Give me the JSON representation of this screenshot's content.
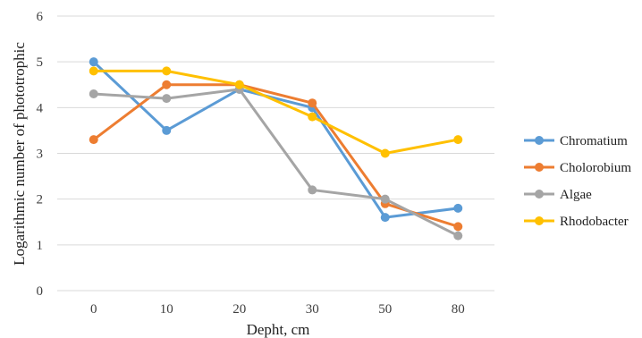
{
  "chart_data": {
    "type": "line",
    "title": "",
    "xlabel": "Depht, cm",
    "ylabel": "Logarithmic number of phototrophic",
    "categories": [
      "0",
      "10",
      "20",
      "30",
      "50",
      "80"
    ],
    "ylim": [
      0,
      6
    ],
    "yticks": [
      0,
      1,
      2,
      3,
      4,
      5,
      6
    ],
    "grid": "horizontal",
    "legend_position": "right",
    "series": [
      {
        "name": "Chromatium",
        "color": "#5b9bd5",
        "values": [
          5.0,
          3.5,
          4.4,
          4.0,
          1.6,
          1.8
        ]
      },
      {
        "name": "Cholorobium",
        "color": "#ed7d31",
        "values": [
          3.3,
          4.5,
          4.5,
          4.1,
          1.9,
          1.4
        ]
      },
      {
        "name": "Algae",
        "color": "#a5a5a5",
        "values": [
          4.3,
          4.2,
          4.4,
          2.2,
          2.0,
          1.2
        ]
      },
      {
        "name": "Rhodobacter",
        "color": "#ffc000",
        "values": [
          4.8,
          4.8,
          4.5,
          3.8,
          3.0,
          3.3
        ]
      }
    ]
  }
}
